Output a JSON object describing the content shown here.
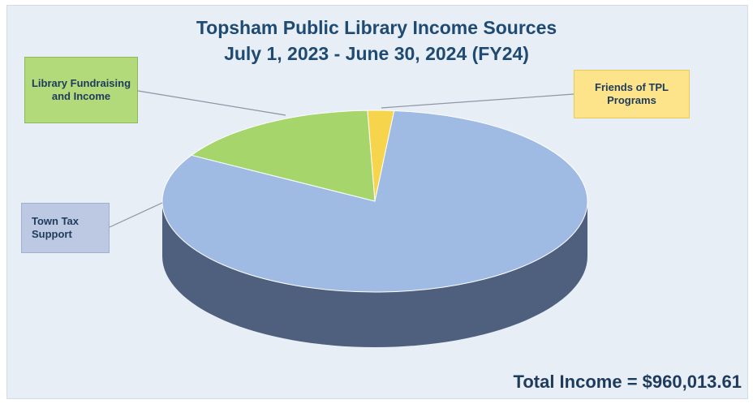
{
  "chart_data": {
    "type": "pie",
    "title": "Topsham Public Library Income Sources",
    "subtitle": "July 1, 2023 - June 30, 2024 (FY24)",
    "slices": [
      {
        "label": "Town Tax Support",
        "value": 82,
        "color": "#9fbbe3",
        "side_color": "#4f5f7e"
      },
      {
        "label": "Library Fundraising and Income",
        "value": 16,
        "color": "#a6d56b",
        "side_color": "#5f8a3a"
      },
      {
        "label": "Friends of TPL Programs",
        "value": 2,
        "color": "#f6d44b",
        "side_color": "#b8972a"
      }
    ],
    "legend": "callout-labels"
  },
  "labels": {
    "fundraising": "Library Fundraising and Income",
    "friends": "Friends of TPL Programs",
    "town": "Town Tax Support"
  },
  "total_text": "Total Income = $960,013.61"
}
